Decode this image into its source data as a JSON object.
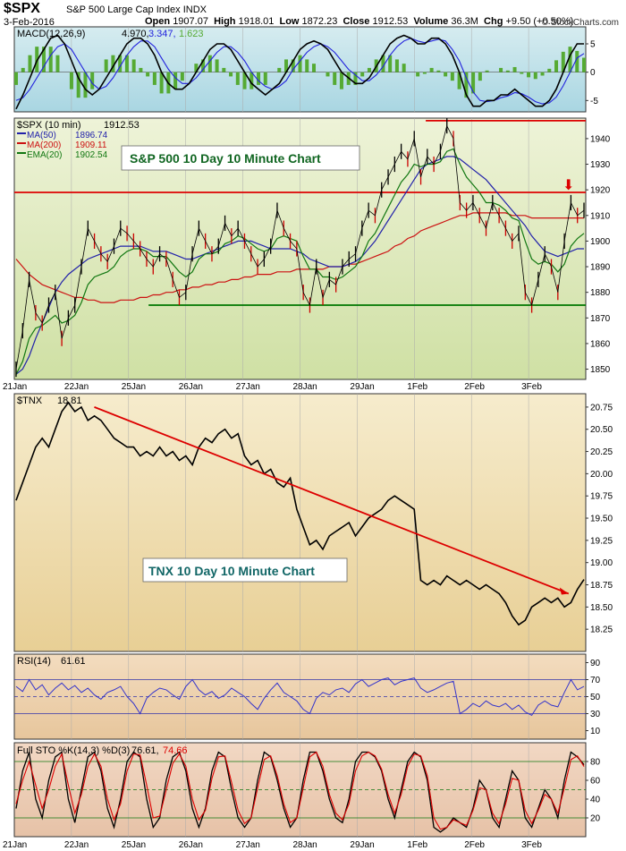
{
  "header": {
    "symbol": "$SPX",
    "name": "S&P 500 Large Cap Index",
    "exchange": "INDX",
    "date": "3-Feb-2016",
    "open_label": "Open",
    "open": "1907.07",
    "high_label": "High",
    "high": "1918.01",
    "low_label": "Low",
    "low": "1872.23",
    "close_label": "Close",
    "close": "1912.53",
    "volume_label": "Volume",
    "volume": "36.3M",
    "chg_label": "Chg",
    "chg": "+9.50 (+0.50%)",
    "brand": "© StockCharts.com"
  },
  "chart_data": [
    {
      "type": "line",
      "panel": "macd",
      "label": "MACD(12,26,9)",
      "values_text": [
        "4.970,",
        "3.347,",
        "1.623"
      ],
      "yticks": [
        5,
        0,
        -5
      ],
      "ylim": [
        -7,
        8
      ],
      "series": [
        {
          "name": "MACD",
          "color": "#000000",
          "values": [
            -6.5,
            -4,
            -1,
            2,
            4,
            6,
            6.5,
            5,
            2,
            -1,
            -3,
            -4,
            -3,
            -1,
            1,
            3,
            5,
            6,
            6,
            5,
            3,
            0,
            -2,
            -3,
            -3,
            -2,
            0,
            2,
            4,
            5,
            5,
            4,
            2,
            0,
            -2,
            -3,
            -4,
            -3,
            -2,
            0,
            2,
            4,
            5,
            5.5,
            5,
            4,
            2,
            0,
            -1,
            -2,
            -2,
            -1,
            1,
            3,
            5,
            6,
            6.5,
            6,
            5,
            5,
            6,
            6,
            5,
            3,
            0,
            -4,
            -6,
            -6,
            -5,
            -5,
            -4,
            -4,
            -3,
            -4,
            -5,
            -6,
            -6,
            -5,
            -3,
            0,
            3,
            5,
            5
          ]
        },
        {
          "name": "Signal",
          "color": "#2222dd",
          "values": [
            -5,
            -4.5,
            -3,
            -1,
            1,
            3,
            4.5,
            5,
            4,
            2,
            0,
            -2,
            -3,
            -2.5,
            -1,
            1,
            3,
            4.5,
            5.5,
            5.5,
            4.5,
            2.5,
            0.5,
            -1,
            -2,
            -2,
            -1,
            0.5,
            2,
            3.5,
            4.5,
            4.5,
            3.5,
            2,
            0,
            -1.5,
            -2.5,
            -3,
            -2.5,
            -1.5,
            0.5,
            2,
            3.5,
            4.5,
            5,
            4.5,
            3.5,
            2,
            0.5,
            -0.5,
            -1.5,
            -1.5,
            -0.5,
            1,
            3,
            4.5,
            5.5,
            6,
            5.5,
            5.2,
            5.5,
            5.8,
            5.5,
            4,
            2,
            -1,
            -3.5,
            -5,
            -5.2,
            -5,
            -4.5,
            -4.2,
            -3.6,
            -3.8,
            -4.4,
            -5.2,
            -5.6,
            -5.4,
            -4.4,
            -2.4,
            0,
            2.5,
            3.3
          ]
        }
      ]
    },
    {
      "type": "line",
      "panel": "price",
      "symbol_label": "$SPX (10 min)",
      "last": "1912.53",
      "annotation": "S&P 500 10 Day 10 Minute Chart",
      "x_ticks": [
        "21Jan",
        "22Jan",
        "25Jan",
        "26Jan",
        "27Jan",
        "28Jan",
        "29Jan",
        "1Feb",
        "2Feb",
        "3Feb"
      ],
      "yticks": [
        1850,
        1860,
        1870,
        1880,
        1890,
        1900,
        1910,
        1920,
        1930,
        1940
      ],
      "ylim": [
        1846,
        1948
      ],
      "legend": [
        {
          "label": "MA(50)",
          "value": "1896.74",
          "color": "#2222aa"
        },
        {
          "label": "MA(200)",
          "value": "1909.11",
          "color": "#cc1111"
        },
        {
          "label": "EMA(20)",
          "value": "1902.54",
          "color": "#117711"
        }
      ],
      "levels": [
        {
          "y": 1919,
          "color": "#dd0000",
          "from": 0,
          "to": 1
        },
        {
          "y": 1875,
          "color": "#007700",
          "from": 0.235,
          "to": 1
        },
        {
          "y": 1947,
          "color": "#dd0000",
          "from": 0.72,
          "to": 1
        }
      ],
      "arrow_text": "⬇",
      "series": [
        {
          "name": "$SPX",
          "color": "#000000",
          "values": [
            1850,
            1865,
            1885,
            1872,
            1868,
            1875,
            1880,
            1862,
            1870,
            1875,
            1890,
            1905,
            1900,
            1895,
            1892,
            1898,
            1905,
            1903,
            1900,
            1897,
            1893,
            1890,
            1895,
            1893,
            1885,
            1878,
            1880,
            1895,
            1905,
            1900,
            1895,
            1898,
            1907,
            1902,
            1905,
            1900,
            1895,
            1890,
            1893,
            1898,
            1912,
            1905,
            1900,
            1897,
            1880,
            1875,
            1890,
            1878,
            1885,
            1883,
            1890,
            1893,
            1895,
            1905,
            1912,
            1910,
            1920,
            1925,
            1930,
            1935,
            1932,
            1940,
            1925,
            1933,
            1930,
            1935,
            1945,
            1940,
            1915,
            1912,
            1915,
            1910,
            1905,
            1915,
            1910,
            1905,
            1900,
            1903,
            1880,
            1875,
            1885,
            1895,
            1890,
            1880,
            1900,
            1915,
            1910,
            1912
          ]
        },
        {
          "name": "MA(50)",
          "color": "#2222aa",
          "values": [
            1848,
            1850,
            1855,
            1862,
            1868,
            1874,
            1880,
            1884,
            1887,
            1889,
            1891,
            1893,
            1894,
            1895,
            1896,
            1897,
            1898,
            1898,
            1898,
            1898,
            1897,
            1896,
            1896,
            1896,
            1895,
            1894,
            1893,
            1893,
            1894,
            1895,
            1896,
            1897,
            1898,
            1899,
            1900,
            1900,
            1900,
            1899,
            1898,
            1897,
            1897,
            1897,
            1897,
            1896,
            1895,
            1893,
            1892,
            1891,
            1890,
            1890,
            1890,
            1891,
            1892,
            1894,
            1897,
            1900,
            1904,
            1908,
            1912,
            1916,
            1920,
            1924,
            1928,
            1930,
            1931,
            1932,
            1933,
            1933,
            1932,
            1930,
            1928,
            1926,
            1924,
            1921,
            1918,
            1915,
            1912,
            1909,
            1906,
            1902,
            1899,
            1896,
            1895,
            1894,
            1895,
            1896,
            1897,
            1897
          ]
        },
        {
          "name": "MA(200)",
          "color": "#cc1111",
          "values": [
            1893,
            1890,
            1887,
            1885,
            1883,
            1882,
            1881,
            1880,
            1879,
            1878,
            1878,
            1877,
            1877,
            1876,
            1876,
            1876,
            1877,
            1877,
            1877,
            1878,
            1878,
            1879,
            1879,
            1880,
            1880,
            1881,
            1881,
            1882,
            1882,
            1883,
            1883,
            1884,
            1884,
            1885,
            1885,
            1886,
            1886,
            1887,
            1887,
            1887,
            1888,
            1888,
            1888,
            1889,
            1889,
            1889,
            1889,
            1889,
            1890,
            1890,
            1890,
            1891,
            1891,
            1892,
            1893,
            1894,
            1895,
            1896,
            1898,
            1899,
            1901,
            1902,
            1904,
            1905,
            1906,
            1907,
            1908,
            1909,
            1910,
            1910,
            1911,
            1911,
            1911,
            1911,
            1911,
            1911,
            1910,
            1910,
            1910,
            1909,
            1909,
            1909,
            1909,
            1909,
            1909,
            1909,
            1909,
            1909
          ]
        },
        {
          "name": "EMA(20)",
          "color": "#117711",
          "values": [
            1848,
            1853,
            1862,
            1866,
            1867,
            1869,
            1871,
            1868,
            1869,
            1871,
            1876,
            1883,
            1886,
            1887,
            1888,
            1890,
            1894,
            1896,
            1897,
            1897,
            1896,
            1894,
            1894,
            1894,
            1891,
            1888,
            1886,
            1888,
            1893,
            1895,
            1895,
            1896,
            1899,
            1900,
            1902,
            1901,
            1899,
            1897,
            1896,
            1897,
            1901,
            1902,
            1901,
            1900,
            1894,
            1889,
            1889,
            1886,
            1886,
            1885,
            1886,
            1888,
            1890,
            1894,
            1900,
            1903,
            1908,
            1913,
            1918,
            1923,
            1926,
            1930,
            1929,
            1930,
            1930,
            1931,
            1935,
            1936,
            1930,
            1925,
            1922,
            1919,
            1915,
            1915,
            1914,
            1912,
            1909,
            1908,
            1900,
            1893,
            1891,
            1892,
            1891,
            1888,
            1891,
            1898,
            1901,
            1903
          ]
        }
      ]
    },
    {
      "type": "line",
      "panel": "tnx",
      "symbol_label": "$TNX",
      "last": "18.81",
      "annotation": "TNX 10 Day 10 Minute Chart",
      "yticks": [
        18.25,
        18.5,
        18.75,
        19.0,
        19.25,
        19.5,
        19.75,
        20.0,
        20.25,
        20.5,
        20.75
      ],
      "ylim": [
        18.0,
        20.9
      ],
      "series": [
        {
          "name": "$TNX",
          "color": "#000000",
          "values": [
            19.7,
            19.9,
            20.1,
            20.3,
            20.4,
            20.3,
            20.5,
            20.7,
            20.8,
            20.7,
            20.75,
            20.6,
            20.65,
            20.6,
            20.5,
            20.4,
            20.35,
            20.3,
            20.3,
            20.2,
            20.25,
            20.2,
            20.3,
            20.2,
            20.25,
            20.15,
            20.2,
            20.1,
            20.3,
            20.4,
            20.35,
            20.45,
            20.5,
            20.4,
            20.45,
            20.2,
            20.1,
            20.15,
            20.0,
            20.05,
            19.9,
            19.85,
            19.95,
            19.6,
            19.4,
            19.2,
            19.25,
            19.15,
            19.3,
            19.35,
            19.4,
            19.45,
            19.3,
            19.4,
            19.5,
            19.55,
            19.6,
            19.7,
            19.75,
            19.7,
            19.65,
            19.6,
            18.8,
            18.75,
            18.8,
            18.75,
            18.85,
            18.8,
            18.75,
            18.8,
            18.75,
            18.7,
            18.75,
            18.7,
            18.65,
            18.55,
            18.4,
            18.3,
            18.35,
            18.5,
            18.55,
            18.6,
            18.55,
            18.6,
            18.5,
            18.55,
            18.7,
            18.81
          ]
        }
      ],
      "trendline": [
        [
          0.14,
          20.75
        ],
        [
          0.97,
          18.65
        ]
      ]
    },
    {
      "type": "line",
      "panel": "rsi",
      "label": "RSI(14)",
      "last": "61.61",
      "yticks": [
        10,
        30,
        50,
        70,
        90
      ],
      "ylim": [
        0,
        100
      ],
      "bands": [
        30,
        50,
        70
      ],
      "series": [
        {
          "name": "RSI",
          "color": "#3333cc",
          "values": [
            62,
            56,
            70,
            58,
            64,
            52,
            60,
            66,
            58,
            63,
            55,
            60,
            52,
            47,
            55,
            58,
            62,
            50,
            42,
            30,
            48,
            55,
            60,
            58,
            52,
            47,
            62,
            70,
            58,
            52,
            56,
            48,
            52,
            60,
            55,
            50,
            42,
            35,
            48,
            58,
            66,
            55,
            50,
            45,
            35,
            30,
            48,
            55,
            52,
            58,
            60,
            55,
            65,
            70,
            62,
            66,
            70,
            72,
            64,
            68,
            70,
            72,
            60,
            55,
            58,
            62,
            66,
            68,
            30,
            35,
            42,
            38,
            45,
            40,
            38,
            42,
            35,
            40,
            32,
            28,
            40,
            45,
            40,
            38,
            55,
            70,
            58,
            62
          ]
        }
      ]
    },
    {
      "type": "line",
      "panel": "sto",
      "label": "Full STO %K(14,3) %D(3)",
      "k_value": "76.61,",
      "d_value": "74.66",
      "yticks": [
        20,
        40,
        60,
        80
      ],
      "ylim": [
        0,
        100
      ],
      "bands": [
        20,
        50,
        80
      ],
      "x_ticks": [
        "21Jan",
        "22Jan",
        "25Jan",
        "26Jan",
        "27Jan",
        "28Jan",
        "29Jan",
        "1Feb",
        "2Feb",
        "3Feb"
      ],
      "series": [
        {
          "name": "%K",
          "color": "#000000",
          "values": [
            30,
            70,
            90,
            40,
            20,
            60,
            85,
            90,
            40,
            15,
            50,
            85,
            90,
            70,
            30,
            10,
            40,
            80,
            90,
            85,
            40,
            10,
            20,
            60,
            85,
            90,
            70,
            30,
            10,
            30,
            70,
            90,
            85,
            50,
            20,
            10,
            20,
            60,
            90,
            85,
            60,
            30,
            10,
            20,
            60,
            90,
            90,
            70,
            40,
            20,
            15,
            40,
            80,
            90,
            90,
            85,
            70,
            40,
            20,
            50,
            80,
            90,
            85,
            60,
            10,
            5,
            10,
            20,
            15,
            10,
            30,
            60,
            50,
            20,
            10,
            40,
            70,
            60,
            20,
            10,
            30,
            50,
            40,
            20,
            60,
            90,
            85,
            76.6
          ]
        },
        {
          "name": "%D",
          "color": "#dd0000",
          "values": [
            35,
            60,
            80,
            55,
            30,
            50,
            75,
            88,
            55,
            25,
            45,
            75,
            88,
            75,
            40,
            18,
            35,
            70,
            88,
            87,
            55,
            20,
            22,
            50,
            78,
            88,
            75,
            40,
            18,
            28,
            62,
            85,
            86,
            58,
            28,
            14,
            20,
            52,
            82,
            86,
            65,
            35,
            15,
            20,
            52,
            85,
            90,
            75,
            45,
            25,
            18,
            35,
            70,
            86,
            90,
            86,
            72,
            45,
            25,
            45,
            75,
            88,
            86,
            65,
            20,
            8,
            10,
            18,
            15,
            12,
            28,
            52,
            50,
            25,
            14,
            35,
            62,
            60,
            28,
            14,
            28,
            45,
            40,
            25,
            52,
            82,
            86,
            74.7
          ]
        }
      ]
    }
  ]
}
